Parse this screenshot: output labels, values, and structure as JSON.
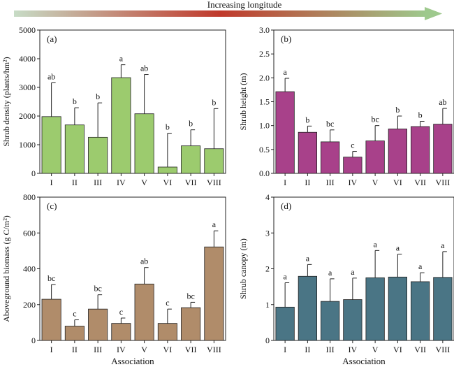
{
  "figure": {
    "banner_label": "Increasing longitude",
    "colors": {
      "arrow_start": "#c7dcc6",
      "arrow_mid": "#c0392b",
      "arrow_end": "#9ec98d"
    }
  },
  "chart_data": [
    {
      "type": "bar",
      "panel_label": "(a)",
      "title": "",
      "xlabel": "",
      "ylabel": "Shrub density (plants/hm²)",
      "categories": [
        "I",
        "II",
        "III",
        "IV",
        "V",
        "VI",
        "VII",
        "VIII"
      ],
      "values": [
        1980,
        1690,
        1260,
        3340,
        2080,
        220,
        960,
        860
      ],
      "error": [
        1180,
        600,
        1200,
        450,
        1370,
        1180,
        560,
        1400
      ],
      "letters": [
        "ab",
        "b",
        "b",
        "a",
        "ab",
        "b",
        "b",
        "b"
      ],
      "ylim": [
        0,
        5000
      ],
      "yticks": [
        0,
        1000,
        2000,
        3000,
        4000,
        5000
      ],
      "color": "#9ccb6e",
      "grid": false
    },
    {
      "type": "bar",
      "panel_label": "(b)",
      "title": "",
      "xlabel": "",
      "ylabel": "Shrub height (m)",
      "categories": [
        "I",
        "II",
        "III",
        "IV",
        "V",
        "VI",
        "VII",
        "VIII"
      ],
      "values": [
        1.71,
        0.86,
        0.66,
        0.34,
        0.68,
        0.93,
        0.98,
        1.03
      ],
      "error": [
        0.28,
        0.13,
        0.25,
        0.12,
        0.32,
        0.27,
        0.11,
        0.33
      ],
      "letters": [
        "a",
        "b",
        "bc",
        "c",
        "bc",
        "b",
        "b",
        "ab"
      ],
      "ylim": [
        0,
        3.0
      ],
      "yticks": [
        0.0,
        0.5,
        1.0,
        1.5,
        2.0,
        2.5,
        3.0
      ],
      "color": "#a8418a",
      "grid": false
    },
    {
      "type": "bar",
      "panel_label": "(c)",
      "title": "",
      "xlabel": "Association",
      "ylabel": "Aboveground biomass (g C/m²)",
      "categories": [
        "I",
        "II",
        "III",
        "IV",
        "V",
        "VI",
        "VII",
        "VIII"
      ],
      "values": [
        230,
        80,
        175,
        95,
        315,
        95,
        183,
        522
      ],
      "error": [
        82,
        35,
        80,
        30,
        92,
        80,
        30,
        90
      ],
      "letters": [
        "bc",
        "c",
        "bc",
        "c",
        "ab",
        "c",
        "bc",
        "a"
      ],
      "ylim": [
        0,
        800
      ],
      "yticks": [
        0,
        200,
        400,
        600,
        800
      ],
      "color": "#b08c6a",
      "grid": false
    },
    {
      "type": "bar",
      "panel_label": "(d)",
      "title": "",
      "xlabel": "Association",
      "ylabel": "Shrub canopy (m)",
      "categories": [
        "I",
        "II",
        "III",
        "IV",
        "V",
        "VI",
        "VII",
        "VIII"
      ],
      "values": [
        0.93,
        1.79,
        1.09,
        1.14,
        1.75,
        1.77,
        1.64,
        1.76
      ],
      "error": [
        0.68,
        0.33,
        0.63,
        0.6,
        0.76,
        0.64,
        0.25,
        0.72
      ],
      "letters": [
        "a",
        "a",
        "a",
        "a",
        "a",
        "a",
        "a",
        "a"
      ],
      "ylim": [
        0,
        4
      ],
      "yticks": [
        0,
        1,
        2,
        3,
        4
      ],
      "color": "#4a7585",
      "grid": false
    }
  ]
}
